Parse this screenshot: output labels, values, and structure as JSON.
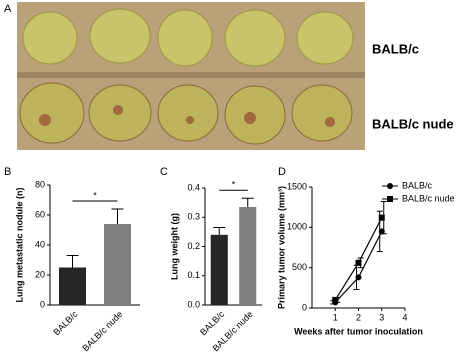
{
  "photo": {
    "label": "A",
    "rows": [
      "BALB/c",
      "BALB/c nude"
    ]
  },
  "chart_data": [
    {
      "type": "bar",
      "label": "B",
      "ylabel": "Lung metastatic nodule (n)",
      "categories": [
        "BALB/c",
        "BALB/c nude"
      ],
      "values": [
        25,
        54
      ],
      "errors": [
        8,
        10
      ],
      "colors": [
        "#262626",
        "#808080"
      ],
      "annotation": "*",
      "ylim": [
        0,
        80
      ],
      "yticks": [
        0,
        20,
        40,
        60,
        80
      ]
    },
    {
      "type": "bar",
      "label": "C",
      "ylabel": "Lung weight (g)",
      "categories": [
        "BALB/c",
        "BALB/c nude"
      ],
      "values": [
        0.24,
        0.335
      ],
      "errors": [
        0.025,
        0.03
      ],
      "colors": [
        "#262626",
        "#808080"
      ],
      "annotation": "*",
      "ylim": [
        0,
        0.4
      ],
      "yticks": [
        {
          "value": 0,
          "label": "0.0"
        },
        0.1,
        0.2,
        0.3,
        0.4
      ]
    },
    {
      "type": "line",
      "label": "D",
      "ylabel": "Primary tumor volume (mm³)",
      "xlabel": "Weeks after tumor inoculation",
      "x": [
        1,
        2,
        3
      ],
      "xlim": [
        0,
        4
      ],
      "xticks": [
        1,
        2,
        3,
        4
      ],
      "ylim": [
        0,
        1500
      ],
      "yticks": [
        0,
        500,
        1000,
        1500
      ],
      "legend": "upper right",
      "series": [
        {
          "name": "BALB/c",
          "color": "#000000",
          "marker": "circle",
          "values": [
            70,
            380,
            950
          ],
          "errors": [
            20,
            150,
            250
          ]
        },
        {
          "name": "BALB/c nude",
          "color": "#000000",
          "marker": "square",
          "values": [
            100,
            560,
            1120
          ],
          "errors": [
            30,
            60,
            200
          ]
        }
      ]
    }
  ]
}
